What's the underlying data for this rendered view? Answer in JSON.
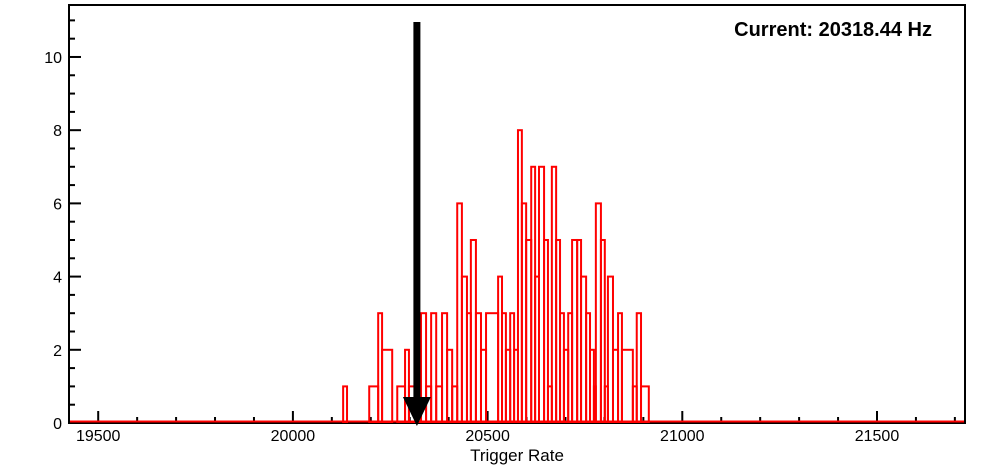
{
  "chart_data": {
    "type": "bar",
    "title": "Current: 20318.44 Hz",
    "xlabel": "Trigger Rate",
    "ylabel": "",
    "legend": null,
    "grid": false,
    "background_color": "#ffffff",
    "hist_color": "#ff0000",
    "axis_color": "#000000",
    "arrow": {
      "x_hz": 20318.44,
      "color": "#000000",
      "direction": "down"
    },
    "xlim": [
      19425,
      21726
    ],
    "ylim": [
      0,
      11.42
    ],
    "x_major_ticks": [
      19500,
      20000,
      20500,
      21000,
      21500
    ],
    "x_minor_step": 100,
    "y_major_ticks": [
      0,
      2,
      4,
      6,
      8,
      10
    ],
    "y_minor_step": 0.5,
    "bins_hz_count": [
      [
        20129,
        20139,
        1
      ],
      [
        20196,
        20219,
        1
      ],
      [
        20219,
        20229,
        3
      ],
      [
        20229,
        20255,
        2
      ],
      [
        20268,
        20288,
        1
      ],
      [
        20288,
        20298,
        2
      ],
      [
        20298,
        20329,
        1
      ],
      [
        20329,
        20342,
        3
      ],
      [
        20342,
        20355,
        1
      ],
      [
        20355,
        20368,
        3
      ],
      [
        20368,
        20383,
        1
      ],
      [
        20383,
        20396,
        3
      ],
      [
        20396,
        20409,
        2
      ],
      [
        20409,
        20422,
        1
      ],
      [
        20422,
        20434,
        6
      ],
      [
        20434,
        20447,
        4
      ],
      [
        20447,
        20457,
        3
      ],
      [
        20457,
        20470,
        5
      ],
      [
        20470,
        20483,
        3
      ],
      [
        20483,
        20496,
        2
      ],
      [
        20496,
        20527,
        3
      ],
      [
        20527,
        20537,
        4
      ],
      [
        20537,
        20547,
        3
      ],
      [
        20547,
        20558,
        2
      ],
      [
        20558,
        20568,
        3
      ],
      [
        20568,
        20578,
        2
      ],
      [
        20578,
        20588,
        8
      ],
      [
        20588,
        20599,
        6
      ],
      [
        20599,
        20612,
        5
      ],
      [
        20612,
        20622,
        7
      ],
      [
        20622,
        20632,
        4
      ],
      [
        20632,
        20645,
        7
      ],
      [
        20645,
        20655,
        5
      ],
      [
        20655,
        20665,
        1
      ],
      [
        20665,
        20676,
        7
      ],
      [
        20676,
        20686,
        5
      ],
      [
        20686,
        20696,
        3
      ],
      [
        20696,
        20707,
        2
      ],
      [
        20707,
        20717,
        3
      ],
      [
        20717,
        20730,
        5
      ],
      [
        20730,
        20740,
        5
      ],
      [
        20740,
        20753,
        4
      ],
      [
        20753,
        20763,
        3
      ],
      [
        20763,
        20773,
        2
      ],
      [
        20773,
        20778,
        1
      ],
      [
        20778,
        20791,
        6
      ],
      [
        20791,
        20801,
        5
      ],
      [
        20801,
        20809,
        1
      ],
      [
        20809,
        20822,
        4
      ],
      [
        20822,
        20835,
        2
      ],
      [
        20835,
        20845,
        3
      ],
      [
        20845,
        20873,
        2
      ],
      [
        20873,
        20883,
        1
      ],
      [
        20883,
        20894,
        3
      ],
      [
        20894,
        20914,
        1
      ]
    ]
  }
}
